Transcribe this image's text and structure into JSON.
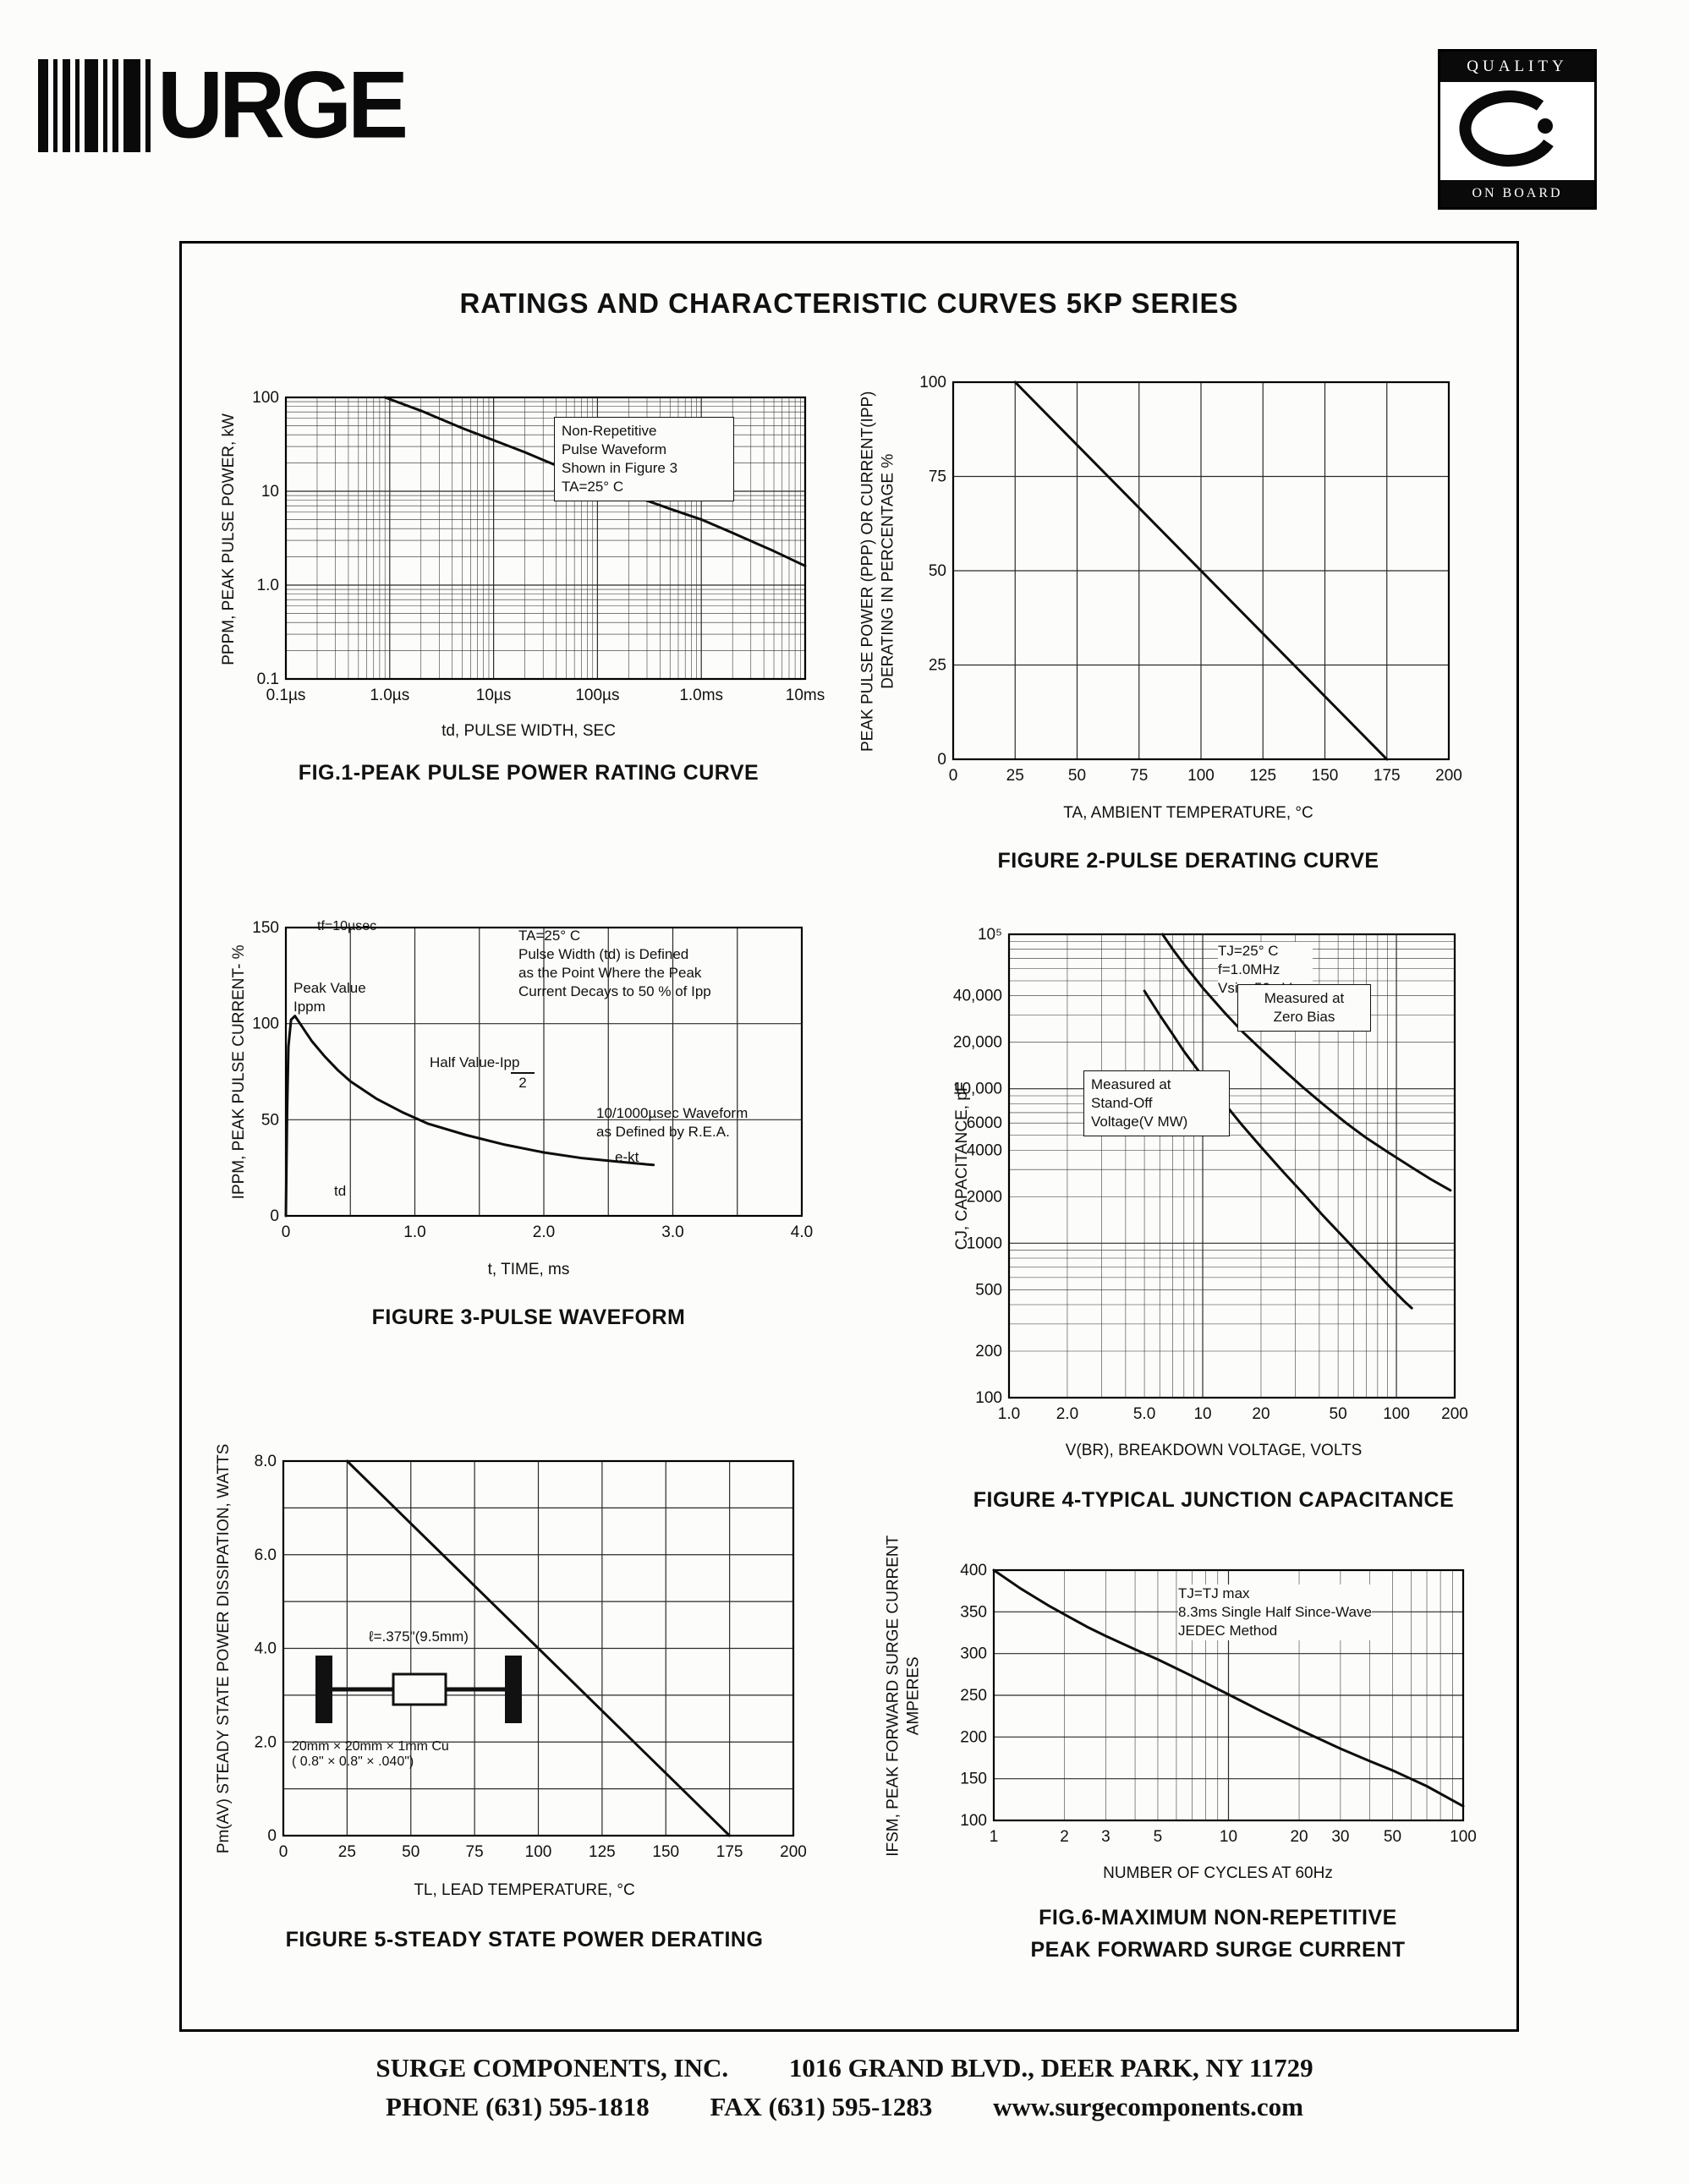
{
  "page": {
    "logo_word": "URGE",
    "badge": {
      "top": "QUALITY",
      "bottom": "ON BOARD"
    },
    "title": "RATINGS AND CHARACTERISTIC CURVES 5KP SERIES",
    "footer": {
      "company": "SURGE COMPONENTS, INC.",
      "address": "1016 GRAND BLVD., DEER PARK, NY  11729",
      "phone": "PHONE (631) 595-1818",
      "fax": "FAX (631) 595-1283",
      "website": "www.surgecomponents.com"
    }
  },
  "chart_data": [
    {
      "id": "fig1",
      "type": "line",
      "title": "FIG.1-PEAK PULSE POWER RATING CURVE",
      "xlabel": "td, PULSE WIDTH, SEC",
      "ylabel": "PPPM, PEAK PULSE POWER, kW",
      "xscale": "log",
      "yscale": "log",
      "xlim": [
        1e-07,
        0.01
      ],
      "ylim": [
        0.1,
        100
      ],
      "xticks": [
        [
          1e-07,
          "0.1µs"
        ],
        [
          1e-06,
          "1.0µs"
        ],
        [
          1e-05,
          "10µs"
        ],
        [
          0.0001,
          "100µs"
        ],
        [
          0.001,
          "1.0ms"
        ],
        [
          0.01,
          "10ms"
        ]
      ],
      "yticks": [
        [
          0.1,
          "0.1"
        ],
        [
          1,
          "1.0"
        ],
        [
          10,
          "10"
        ],
        [
          100,
          "100"
        ]
      ],
      "annotations": {
        "note": "Non-Repetitive\nPulse Waveform\nShown in Figure 3\nTA=25° C"
      },
      "series": [
        {
          "name": "peak-pulse-power",
          "points": [
            [
              9e-07,
              100
            ],
            [
              2e-06,
              72
            ],
            [
              5e-06,
              47
            ],
            [
              1e-05,
              35
            ],
            [
              2e-05,
              26
            ],
            [
              5e-05,
              17
            ],
            [
              0.0001,
              12.5
            ],
            [
              0.0002,
              9.3
            ],
            [
              0.0005,
              6.5
            ],
            [
              0.001,
              5
            ],
            [
              0.002,
              3.6
            ],
            [
              0.005,
              2.3
            ],
            [
              0.01,
              1.6
            ]
          ]
        }
      ]
    },
    {
      "id": "fig2",
      "type": "line",
      "title": "FIGURE 2-PULSE DERATING CURVE",
      "xlabel": "TA, AMBIENT  TEMPERATURE, °C",
      "ylabel": "PEAK PULSE POWER (PPP) OR CURRENT(IPP)\nDERATING IN PERCENTAGE %",
      "xscale": "linear",
      "yscale": "linear",
      "xlim": [
        0,
        200
      ],
      "ylim": [
        0,
        100
      ],
      "xminor": 25,
      "yminor": 25,
      "xticks": [
        [
          0,
          "0"
        ],
        [
          25,
          "25"
        ],
        [
          50,
          "50"
        ],
        [
          75,
          "75"
        ],
        [
          100,
          "100"
        ],
        [
          125,
          "125"
        ],
        [
          150,
          "150"
        ],
        [
          175,
          "175"
        ],
        [
          200,
          "200"
        ]
      ],
      "yticks": [
        [
          0,
          "0"
        ],
        [
          25,
          "25"
        ],
        [
          50,
          "50"
        ],
        [
          75,
          "75"
        ],
        [
          100,
          "100"
        ]
      ],
      "series": [
        {
          "name": "derating",
          "points": [
            [
              25,
              100
            ],
            [
              175,
              0
            ]
          ]
        }
      ]
    },
    {
      "id": "fig3",
      "type": "line",
      "title": "FIGURE 3-PULSE WAVEFORM",
      "xlabel": "t, TIME, ms",
      "ylabel": "IPPM, PEAK PULSE CURRENT- %",
      "xscale": "linear",
      "yscale": "linear",
      "xlim": [
        0,
        4
      ],
      "ylim": [
        0,
        150
      ],
      "xminor": 0.5,
      "yminor": 50,
      "xticks": [
        [
          0,
          "0"
        ],
        [
          1,
          "1.0"
        ],
        [
          2,
          "2.0"
        ],
        [
          3,
          "3.0"
        ],
        [
          4,
          "4.0"
        ]
      ],
      "yticks": [
        [
          0,
          "0"
        ],
        [
          50,
          "50"
        ],
        [
          100,
          "100"
        ],
        [
          150,
          "150"
        ]
      ],
      "labels": {
        "tf": "tf=10µsec",
        "peak": "Peak Value\nIppm",
        "half_top": "Half Value-Ipp",
        "half_bottom": "2",
        "params": "TA=25° C\nPulse Width (td) is Defined\nas the Point Where the Peak\nCurrent Decays to 50 % of Ipp",
        "rea": "10/1000µsec Waveform\nas Defined by R.E.A.",
        "ekt": "e-kt",
        "td": "td"
      },
      "series": [
        {
          "name": "pulse-waveform",
          "points": [
            [
              0,
              0
            ],
            [
              0.01,
              55
            ],
            [
              0.02,
              88
            ],
            [
              0.04,
              102
            ],
            [
              0.07,
              104
            ],
            [
              0.1,
              101
            ],
            [
              0.15,
              96
            ],
            [
              0.2,
              91
            ],
            [
              0.3,
              83
            ],
            [
              0.4,
              76
            ],
            [
              0.5,
              70
            ],
            [
              0.7,
              61
            ],
            [
              0.9,
              54
            ],
            [
              1.1,
              48
            ],
            [
              1.4,
              42
            ],
            [
              1.7,
              37
            ],
            [
              2.0,
              33
            ],
            [
              2.3,
              30
            ],
            [
              2.6,
              28
            ],
            [
              2.85,
              26.5
            ]
          ]
        }
      ]
    },
    {
      "id": "fig4",
      "type": "line",
      "title": "FIGURE 4-TYPICAL JUNCTION CAPACITANCE",
      "xlabel": "V(BR), BREAKDOWN  VOLTAGE, VOLTS",
      "ylabel": "CJ, CAPACITANCE, pF",
      "xscale": "log",
      "yscale": "log",
      "xlim": [
        1,
        200
      ],
      "ylim": [
        100,
        100000
      ],
      "xticks": [
        [
          1,
          "1.0"
        ],
        [
          2,
          "2.0"
        ],
        [
          5,
          "5.0"
        ],
        [
          10,
          "10"
        ],
        [
          20,
          "20"
        ],
        [
          50,
          "50"
        ],
        [
          100,
          "100"
        ],
        [
          200,
          "200"
        ]
      ],
      "yticks": [
        [
          100,
          "100"
        ],
        [
          200,
          "200"
        ],
        [
          500,
          "500"
        ],
        [
          1000,
          "1000"
        ],
        [
          2000,
          "2000"
        ],
        [
          4000,
          "4000"
        ],
        [
          6000,
          "6000"
        ],
        [
          10000,
          "10,000"
        ],
        [
          20000,
          "20,000"
        ],
        [
          40000,
          "40,000"
        ],
        [
          100000,
          "10⁵"
        ]
      ],
      "annotations": {
        "params": "TJ=25° C\nf=1.0MHz\nVsig=50mVp-p",
        "zero_bias": "Measured at\nZero Bias",
        "standoff": "Measured at\nStand-Off\nVoltage(V MW)"
      },
      "series": [
        {
          "name": "measured-at-zero-bias",
          "points": [
            [
              6.2,
              100000
            ],
            [
              7,
              80000
            ],
            [
              8,
              64000
            ],
            [
              10,
              45000
            ],
            [
              13,
              31000
            ],
            [
              16,
              23500
            ],
            [
              20,
              18000
            ],
            [
              26,
              13300
            ],
            [
              33,
              10200
            ],
            [
              42,
              7900
            ],
            [
              55,
              6000
            ],
            [
              70,
              4800
            ],
            [
              90,
              3900
            ],
            [
              120,
              3100
            ],
            [
              150,
              2600
            ],
            [
              190,
              2200
            ]
          ]
        },
        {
          "name": "measured-at-standoff-voltage",
          "points": [
            [
              5,
              43000
            ],
            [
              6,
              30000
            ],
            [
              7,
              22500
            ],
            [
              8,
              17500
            ],
            [
              10,
              12000
            ],
            [
              13,
              8000
            ],
            [
              16,
              5800
            ],
            [
              20,
              4200
            ],
            [
              26,
              2900
            ],
            [
              33,
              2100
            ],
            [
              42,
              1500
            ],
            [
              55,
              1050
            ],
            [
              70,
              760
            ],
            [
              90,
              540
            ],
            [
              110,
              420
            ],
            [
              120,
              380
            ]
          ]
        }
      ]
    },
    {
      "id": "fig5",
      "type": "line",
      "title": "FIGURE 5-STEADY STATE POWER DERATING",
      "xlabel": "TL, LEAD  TEMPERATURE, °C",
      "ylabel": "Pm(AV) STEADY STATE POWER DISSIPATION, WATTS",
      "xscale": "linear",
      "yscale": "linear",
      "xlim": [
        0,
        200
      ],
      "ylim": [
        0,
        8
      ],
      "xminor": 25,
      "yminor": 1,
      "xticks": [
        [
          0,
          "0"
        ],
        [
          25,
          "25"
        ],
        [
          50,
          "50"
        ],
        [
          75,
          "75"
        ],
        [
          100,
          "100"
        ],
        [
          125,
          "125"
        ],
        [
          150,
          "150"
        ],
        [
          175,
          "175"
        ],
        [
          200,
          "200"
        ]
      ],
      "yticks": [
        [
          0,
          "0"
        ],
        [
          2,
          "2.0"
        ],
        [
          4,
          "4.0"
        ],
        [
          6,
          "6.0"
        ],
        [
          8,
          "8.0"
        ]
      ],
      "annotations": {
        "lead": "ℓ=.375\"(9.5mm)",
        "cu": "20mm × 20mm × 1mm Cu\n( 0.8\" ×  0.8\" × .040\")"
      },
      "series": [
        {
          "name": "power-derating",
          "points": [
            [
              25,
              8
            ],
            [
              175,
              0
            ]
          ]
        }
      ]
    },
    {
      "id": "fig6",
      "type": "line",
      "title": "FIG.6-MAXIMUM NON-REPETITIVE\nPEAK FORWARD SURGE CURRENT",
      "xlabel": "NUMBER  OF  CYCLES  AT  60Hz",
      "ylabel": "IFSM, PEAK FORWARD SURGE CURRENT\nAMPERES",
      "xscale": "log",
      "yscale": "linear",
      "xlim": [
        1,
        100
      ],
      "ylim": [
        100,
        400
      ],
      "yminor": 50,
      "xticks": [
        [
          1,
          "1"
        ],
        [
          2,
          "2"
        ],
        [
          3,
          "3"
        ],
        [
          5,
          "5"
        ],
        [
          10,
          "10"
        ],
        [
          20,
          "20"
        ],
        [
          30,
          "30"
        ],
        [
          50,
          "50"
        ],
        [
          100,
          "100"
        ]
      ],
      "yticks": [
        [
          100,
          "100"
        ],
        [
          150,
          "150"
        ],
        [
          200,
          "200"
        ],
        [
          250,
          "250"
        ],
        [
          300,
          "300"
        ],
        [
          350,
          "350"
        ],
        [
          400,
          "400"
        ]
      ],
      "annotations": {
        "params": "TJ=TJ max\n8.3ms Single Half Since-Wave\nJEDEC Method"
      },
      "series": [
        {
          "name": "surge-current",
          "points": [
            [
              1,
              400
            ],
            [
              1.3,
              378
            ],
            [
              1.7,
              358
            ],
            [
              2,
              347
            ],
            [
              2.5,
              332
            ],
            [
              3,
              321
            ],
            [
              4,
              305
            ],
            [
              5,
              293
            ],
            [
              7,
              273
            ],
            [
              10,
              251
            ],
            [
              14,
              230
            ],
            [
              20,
              209
            ],
            [
              30,
              186
            ],
            [
              40,
              171
            ],
            [
              50,
              160
            ],
            [
              70,
              141
            ],
            [
              100,
              117
            ]
          ]
        }
      ]
    }
  ]
}
